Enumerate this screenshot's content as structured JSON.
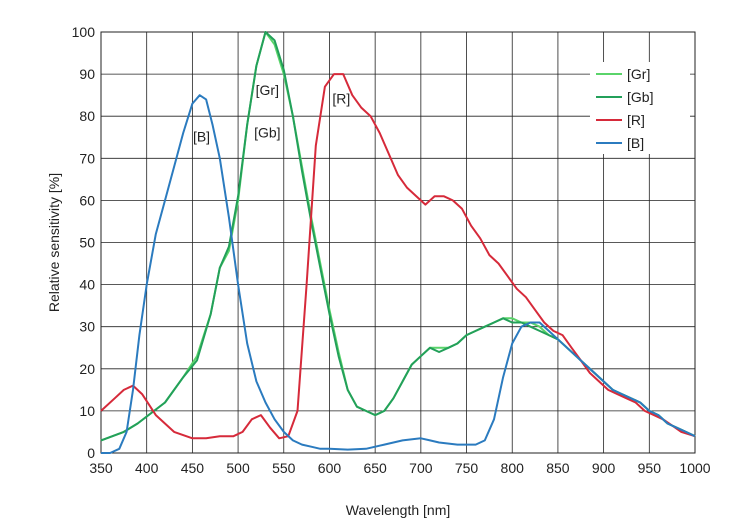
{
  "chart_data": {
    "type": "line",
    "title": "",
    "xlabel": "Wavelength [nm]",
    "ylabel": "Relative sensitivity [%]",
    "xlim": [
      350,
      1000
    ],
    "ylim": [
      0,
      100
    ],
    "grid": true,
    "legend_position": "top-right",
    "x_ticks": [
      350,
      400,
      450,
      500,
      550,
      600,
      650,
      700,
      750,
      800,
      850,
      900,
      950,
      1000
    ],
    "y_ticks": [
      0,
      10,
      20,
      30,
      40,
      50,
      60,
      70,
      80,
      90,
      100
    ],
    "annotations": [
      "[Gr]",
      "[Gb]",
      "[R]",
      "[B]"
    ],
    "series": [
      {
        "name": "[Gr]",
        "color": "#5ad46a",
        "x": [
          350,
          375,
          390,
          420,
          440,
          455,
          470,
          480,
          490,
          500,
          510,
          520,
          530,
          540,
          550,
          560,
          570,
          580,
          590,
          600,
          610,
          620,
          630,
          640,
          650,
          660,
          670,
          680,
          690,
          700,
          710,
          720,
          730,
          740,
          750,
          760,
          770,
          780,
          790,
          800,
          810,
          820,
          830,
          840,
          850,
          860,
          870,
          880,
          890,
          900,
          910,
          920,
          930,
          940,
          950,
          960,
          970,
          980,
          990,
          1000
        ],
        "y": [
          3,
          5,
          7,
          12,
          18,
          23,
          33,
          44,
          48,
          60,
          78,
          92,
          100,
          97,
          90,
          80,
          68,
          56,
          45,
          34,
          24,
          15,
          11,
          10,
          9,
          10,
          13,
          17,
          21,
          23,
          25,
          25,
          25,
          26,
          28,
          29,
          30,
          31,
          32,
          32,
          31,
          31,
          30,
          28,
          27,
          25,
          23,
          21,
          19,
          17,
          15,
          14,
          13,
          12,
          10,
          9,
          7,
          6,
          5,
          4
        ]
      },
      {
        "name": "[Gb]",
        "color": "#23a05a",
        "x": [
          350,
          375,
          390,
          420,
          440,
          455,
          470,
          480,
          490,
          500,
          510,
          520,
          530,
          540,
          550,
          560,
          570,
          580,
          590,
          600,
          610,
          620,
          630,
          640,
          650,
          660,
          670,
          680,
          690,
          700,
          710,
          720,
          730,
          740,
          750,
          760,
          770,
          780,
          790,
          800,
          810,
          820,
          830,
          840,
          850,
          860,
          870,
          880,
          890,
          900,
          910,
          920,
          930,
          940,
          950,
          960,
          970,
          980,
          990,
          1000
        ],
        "y": [
          3,
          5,
          7,
          12,
          18,
          22,
          33,
          44,
          49,
          61,
          78,
          92,
          100,
          98,
          91,
          80,
          67,
          55,
          44,
          33,
          23,
          15,
          11,
          10,
          9,
          10,
          13,
          17,
          21,
          23,
          25,
          24,
          25,
          26,
          28,
          29,
          30,
          31,
          32,
          31,
          31,
          30,
          29,
          28,
          27,
          25,
          23,
          21,
          19,
          17,
          15,
          14,
          13,
          12,
          10,
          9,
          7,
          6,
          5,
          4
        ]
      },
      {
        "name": "[R]",
        "color": "#d62a3a",
        "x": [
          350,
          365,
          375,
          385,
          395,
          410,
          430,
          450,
          465,
          480,
          495,
          505,
          515,
          525,
          535,
          545,
          555,
          565,
          575,
          585,
          595,
          605,
          615,
          625,
          635,
          645,
          655,
          665,
          675,
          685,
          695,
          705,
          715,
          725,
          735,
          745,
          755,
          765,
          775,
          785,
          795,
          805,
          815,
          825,
          835,
          845,
          855,
          865,
          875,
          885,
          895,
          905,
          915,
          925,
          935,
          945,
          955,
          965,
          975,
          985,
          1000
        ],
        "y": [
          10,
          13,
          15,
          16,
          14,
          9,
          5,
          3.5,
          3.5,
          4,
          4,
          5,
          8,
          9,
          6,
          3.5,
          4,
          10,
          40,
          73,
          87,
          90,
          90,
          85,
          82,
          80,
          76,
          71,
          66,
          63,
          61,
          59,
          61,
          61,
          60,
          58,
          54,
          51,
          47,
          45,
          42,
          39,
          37,
          34,
          31,
          29,
          28,
          25,
          22,
          19,
          17,
          15,
          14,
          13,
          12,
          10,
          9,
          8,
          6.5,
          5,
          4
        ]
      },
      {
        "name": "[B]",
        "color": "#2b7bbf",
        "x": [
          350,
          360,
          370,
          378,
          385,
          392,
          400,
          410,
          420,
          430,
          440,
          450,
          458,
          465,
          472,
          480,
          490,
          500,
          510,
          520,
          530,
          540,
          550,
          560,
          570,
          580,
          590,
          600,
          620,
          640,
          660,
          680,
          700,
          710,
          720,
          740,
          760,
          770,
          780,
          790,
          800,
          810,
          820,
          830,
          840,
          850,
          860,
          870,
          880,
          890,
          900,
          910,
          920,
          930,
          940,
          950,
          960,
          970,
          980,
          990,
          1000
        ],
        "y": [
          0,
          0,
          1,
          5,
          15,
          28,
          40,
          52,
          60,
          68,
          76,
          83,
          85,
          84,
          78,
          70,
          56,
          40,
          26,
          17,
          12,
          8,
          5,
          3,
          2,
          1.5,
          1,
          1,
          0.8,
          1,
          2,
          3,
          3.5,
          3,
          2.5,
          2,
          2,
          3,
          8,
          18,
          26,
          30,
          31,
          31,
          29,
          27,
          25,
          23,
          21,
          19,
          17,
          15,
          14,
          13,
          12,
          10,
          9,
          7,
          6,
          5,
          4
        ]
      }
    ]
  }
}
